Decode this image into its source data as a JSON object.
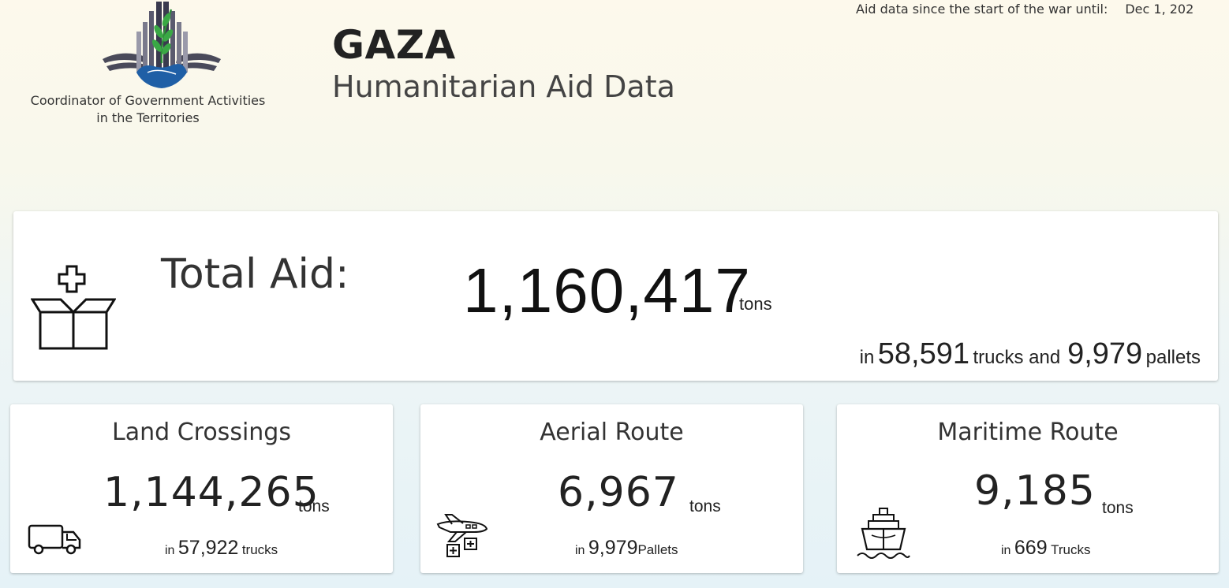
{
  "header": {
    "org_name_line1": "Coordinator of Government Activities",
    "org_name_line2": "in the Territories",
    "title": "GAZA",
    "subtitle": "Humanitarian Aid Data",
    "since_label": "Aid data since the start of the war until:",
    "since_date": "Dec 1, 202"
  },
  "total": {
    "label": "Total Aid:",
    "value": "1,160,417",
    "unit": "tons",
    "in_label": "in",
    "trucks": "58,591",
    "trucks_and_label": "trucks and",
    "pallets": "9,979",
    "pallets_label": "pallets",
    "icon": "aid-box-icon"
  },
  "routes": [
    {
      "title": "Land Crossings",
      "value": "1,144,265",
      "unit": "tons",
      "in_label": "in",
      "count": "57,922",
      "count_label": "trucks",
      "icon": "truck-icon"
    },
    {
      "title": "Aerial Route",
      "value": "6,967",
      "unit": "tons",
      "in_label": "in",
      "count": "9,979",
      "count_label": "Pallets",
      "icon": "airplane-airdrop-icon"
    },
    {
      "title": "Maritime Route",
      "value": "9,185",
      "unit": "tons",
      "in_label": "in",
      "count": "669",
      "count_label": "Trucks",
      "icon": "ship-icon"
    }
  ],
  "colors": {
    "logo_blue": "#1f5fa6",
    "logo_green": "#3aa845",
    "logo_gray": "#5a5a6e"
  }
}
